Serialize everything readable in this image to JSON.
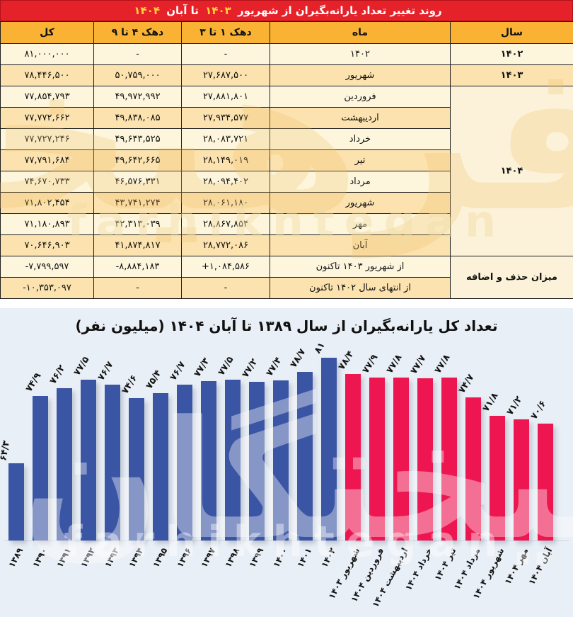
{
  "table": {
    "title_segments": [
      {
        "text": "روند تغییر تعداد یارانه‌بگیران از شهریور ",
        "color": "white"
      },
      {
        "text": "۱۴۰۳",
        "color": "yellow"
      },
      {
        "text": " تا آبان ",
        "color": "white"
      },
      {
        "text": "۱۴۰۴",
        "color": "yellow"
      }
    ],
    "headers": {
      "year": "سال",
      "month": "ماه",
      "decile_1_3": "دهک ۱ تا ۳",
      "decile_4_9": "دهک ۴ تا ۹",
      "total": "کل"
    },
    "rows": [
      {
        "year": "۱۴۰۲",
        "yspan": 1,
        "month": "۱۴۰۲",
        "d13": "-",
        "d49": "-",
        "total": "۸۱,۰۰۰,۰۰۰"
      },
      {
        "year": "۱۴۰۳",
        "yspan": 1,
        "month": "شهریور",
        "d13": "۲۷,۶۸۷,۵۰۰",
        "d49": "۵۰,۷۵۹,۰۰۰",
        "total": "۷۸,۴۴۶,۵۰۰"
      },
      {
        "year": "۱۴۰۴",
        "yspan": 8,
        "month": "فروردین",
        "d13": "۲۷,۸۸۱,۸۰۱",
        "d49": "۴۹,۹۷۲,۹۹۲",
        "total": "۷۷,۸۵۴,۷۹۳"
      },
      {
        "month": "اردیبهشت",
        "d13": "۲۷,۹۳۴,۵۷۷",
        "d49": "۴۹,۸۳۸,۰۸۵",
        "total": "۷۷,۷۷۲,۶۶۲"
      },
      {
        "month": "خرداد",
        "d13": "۲۸,۰۸۳,۷۲۱",
        "d49": "۴۹,۶۴۳,۵۲۵",
        "total": "۷۷,۷۲۷,۲۴۶"
      },
      {
        "month": "تیر",
        "d13": "۲۸,۱۴۹,۰۱۹",
        "d49": "۴۹,۶۴۲,۶۶۵",
        "total": "۷۷,۷۹۱,۶۸۴"
      },
      {
        "month": "مرداد",
        "d13": "۲۸,۰۹۴,۴۰۲",
        "d49": "۴۶,۵۷۶,۳۳۱",
        "total": "۷۴,۶۷۰,۷۳۳"
      },
      {
        "month": "شهریور",
        "d13": "۲۸,۰۶۱,۱۸۰",
        "d49": "۴۳,۷۴۱,۲۷۴",
        "total": "۷۱,۸۰۲,۴۵۴"
      },
      {
        "month": "مهر",
        "d13": "۲۸,۸۶۷,۸۵۴",
        "d49": "۴۲,۳۱۳,۰۳۹",
        "total": "۷۱,۱۸۰,۸۹۳"
      },
      {
        "month": "آبان",
        "d13": "۲۸,۷۷۲,۰۸۶",
        "d49": "۴۱,۸۷۴,۸۱۷",
        "total": "۷۰,۶۴۶,۹۰۳"
      },
      {
        "year": "میزان حذف و اضافه",
        "yspan": 2,
        "month": "از شهریور ۱۴۰۳ تاکنون",
        "d13": "+۱,۰۸۴,۵۸۶",
        "d49": "-۸,۸۸۴,۱۸۳",
        "total": "-۷,۷۹۹,۵۹۷"
      },
      {
        "month": "از انتهای سال ۱۴۰۲ تاکنون",
        "d13": "-",
        "d49": "-",
        "total": "-۱۰,۳۵۳,۰۹۷"
      }
    ]
  },
  "chart_data": {
    "type": "bar",
    "title": "تعداد کل یارانه‌بگیران از سال ۱۳۸۹ تا آبان ۱۴۰۴ (میلیون نفر)",
    "xlabel": "",
    "ylabel": "میلیون نفر",
    "categories": [
      "۱۳۸۹",
      "۱۳۹۰",
      "۱۳۹۱",
      "۱۳۹۲",
      "۱۳۹۳",
      "۱۳۹۴",
      "۱۳۹۵",
      "۱۳۹۶",
      "۱۳۹۷",
      "۱۳۹۸",
      "۱۳۹۹",
      "۱۴۰۰",
      "۱۴۰۱",
      "۱۴۰۲",
      "شهریور ۱۴۰۳",
      "فروردین ۱۴۰۴",
      "اردیبهشت ۱۴۰۴",
      "خرداد ۱۴۰۴",
      "تیر ۱۴۰۴",
      "مرداد ۱۴۰۴",
      "شهریور ۱۴۰۴",
      "مهر ۱۴۰۴",
      "آبان ۱۴۰۴"
    ],
    "values": [
      64.3,
      74.9,
      76.2,
      77.5,
      76.7,
      74.6,
      75.4,
      76.7,
      77.3,
      77.5,
      77.2,
      77.4,
      78.7,
      81,
      78.4,
      77.9,
      77.8,
      77.7,
      77.8,
      74.7,
      71.8,
      71.2,
      70.6
    ],
    "value_labels": [
      "۶۴/۳",
      "۷۴/۹",
      "۷۶/۲",
      "۷۷/۵",
      "۷۶/۷",
      "۷۴/۶",
      "۷۵/۴",
      "۷۶/۷",
      "۷۷/۳",
      "۷۷/۵",
      "۷۷/۲",
      "۷۷/۴",
      "۷۸/۷",
      "۸۱",
      "۷۸/۴",
      "۷۷/۹",
      "۷۷/۸",
      "۷۷/۷",
      "۷۷/۸",
      "۷۴/۷",
      "۷۱/۸",
      "۷۱/۲",
      "۷۰/۶"
    ],
    "series_split_index": 14,
    "colors": {
      "years_bars": "#3b55a5",
      "months_bars": "#ed1651",
      "background": "#e9eff6"
    },
    "axis_min": 52,
    "axis_max": 81,
    "grid": false,
    "legend": "none"
  },
  "watermark": {
    "latin": "farhikhtegan",
    "persian": "فرهیختگان"
  },
  "colors": {
    "title_bar": "#e5222a",
    "header_cells": "#f9b233",
    "row_light": "#fdf6dd",
    "row_dark": "#fbe2ae"
  }
}
